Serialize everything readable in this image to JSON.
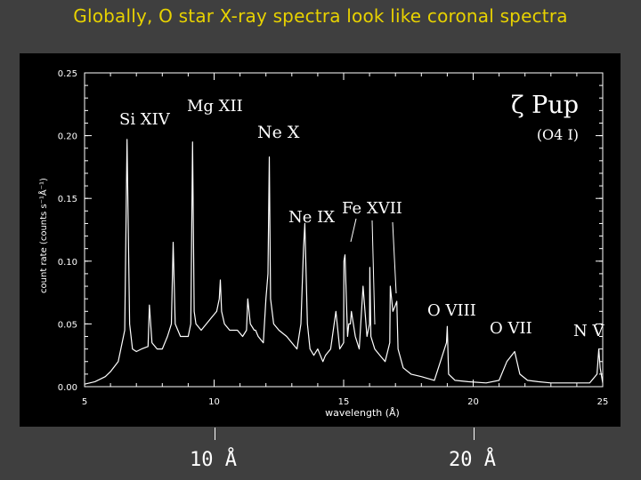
{
  "slide": {
    "title": "Globally, O star X-ray spectra look like coronal spectra"
  },
  "chart_data": {
    "type": "line",
    "title": "",
    "xlabel": "wavelength (Å)",
    "ylabel": "count rate (counts s⁻¹Å⁻¹)",
    "xlim": [
      5,
      25
    ],
    "ylim": [
      0,
      0.25
    ],
    "xticks": [
      5,
      10,
      15,
      20,
      25
    ],
    "xtick_labels": [
      "5",
      "10",
      "15",
      "20",
      "25"
    ],
    "yticks": [
      0,
      0.05,
      0.1,
      0.15,
      0.2,
      0.25
    ],
    "ytick_labels": [
      "0.00",
      "0.05",
      "0.10",
      "0.15",
      "0.20",
      "0.25"
    ],
    "grid": false,
    "line_color": "#ffffff",
    "background": "#000000",
    "spectrum": {
      "x": [
        5.0,
        5.4,
        5.8,
        6.0,
        6.3,
        6.55,
        6.64,
        6.69,
        6.74,
        6.85,
        7.0,
        7.2,
        7.45,
        7.5,
        7.6,
        7.8,
        8.0,
        8.2,
        8.35,
        8.42,
        8.5,
        8.7,
        9.0,
        9.1,
        9.17,
        9.23,
        9.3,
        9.5,
        9.7,
        9.9,
        10.1,
        10.2,
        10.24,
        10.29,
        10.4,
        10.6,
        10.9,
        11.1,
        11.25,
        11.3,
        11.4,
        11.55,
        11.6,
        11.7,
        11.9,
        12.0,
        12.08,
        12.13,
        12.18,
        12.3,
        12.5,
        12.8,
        13.0,
        13.2,
        13.35,
        13.45,
        13.5,
        13.6,
        13.7,
        13.85,
        14.0,
        14.2,
        14.3,
        14.5,
        14.7,
        14.85,
        15.0,
        15.01,
        15.05,
        15.15,
        15.2,
        15.26,
        15.3,
        15.45,
        15.6,
        15.75,
        15.9,
        16.0,
        16.01,
        16.05,
        16.2,
        16.4,
        16.6,
        16.78,
        16.8,
        16.9,
        17.0,
        17.05,
        17.1,
        17.3,
        17.6,
        18.0,
        18.5,
        18.97,
        19.0,
        19.05,
        19.3,
        19.8,
        20.5,
        21.0,
        21.3,
        21.6,
        21.8,
        22.1,
        22.5,
        23.0,
        23.5,
        24.0,
        24.5,
        24.78,
        24.85,
        24.9,
        25.0
      ],
      "y": [
        0.002,
        0.004,
        0.008,
        0.012,
        0.02,
        0.045,
        0.197,
        0.12,
        0.05,
        0.03,
        0.028,
        0.03,
        0.032,
        0.065,
        0.035,
        0.03,
        0.03,
        0.04,
        0.05,
        0.115,
        0.05,
        0.04,
        0.04,
        0.05,
        0.195,
        0.06,
        0.05,
        0.045,
        0.05,
        0.055,
        0.06,
        0.07,
        0.085,
        0.06,
        0.05,
        0.045,
        0.045,
        0.04,
        0.045,
        0.07,
        0.05,
        0.045,
        0.045,
        0.04,
        0.035,
        0.07,
        0.09,
        0.183,
        0.07,
        0.05,
        0.045,
        0.04,
        0.035,
        0.03,
        0.05,
        0.11,
        0.13,
        0.05,
        0.03,
        0.025,
        0.03,
        0.02,
        0.025,
        0.03,
        0.06,
        0.03,
        0.035,
        0.1,
        0.105,
        0.04,
        0.05,
        0.05,
        0.06,
        0.04,
        0.03,
        0.08,
        0.04,
        0.05,
        0.095,
        0.04,
        0.03,
        0.025,
        0.02,
        0.035,
        0.08,
        0.06,
        0.065,
        0.068,
        0.03,
        0.015,
        0.01,
        0.008,
        0.005,
        0.035,
        0.048,
        0.01,
        0.005,
        0.004,
        0.003,
        0.005,
        0.02,
        0.028,
        0.01,
        0.005,
        0.004,
        0.003,
        0.003,
        0.003,
        0.003,
        0.01,
        0.03,
        0.015,
        0.003
      ]
    },
    "annotations": [
      {
        "label": "Si XIV",
        "x": 6.18
      },
      {
        "label": "Mg XII",
        "x": 8.42
      },
      {
        "label": "Ne X",
        "x": 12.13
      },
      {
        "label": "Ne IX",
        "x": 13.45
      },
      {
        "label": "Fe XVII",
        "x": 15.01
      },
      {
        "label": "O VIII",
        "x": 18.97
      },
      {
        "label": "O VII",
        "x": 21.6
      },
      {
        "label": "N V",
        "x": 24.78
      }
    ],
    "star": {
      "name": "ζ Pup",
      "type": "(O4 I)"
    }
  },
  "below_axis": [
    {
      "label": "10 Å",
      "x": 10
    },
    {
      "label": "20 Å",
      "x": 20
    }
  ]
}
